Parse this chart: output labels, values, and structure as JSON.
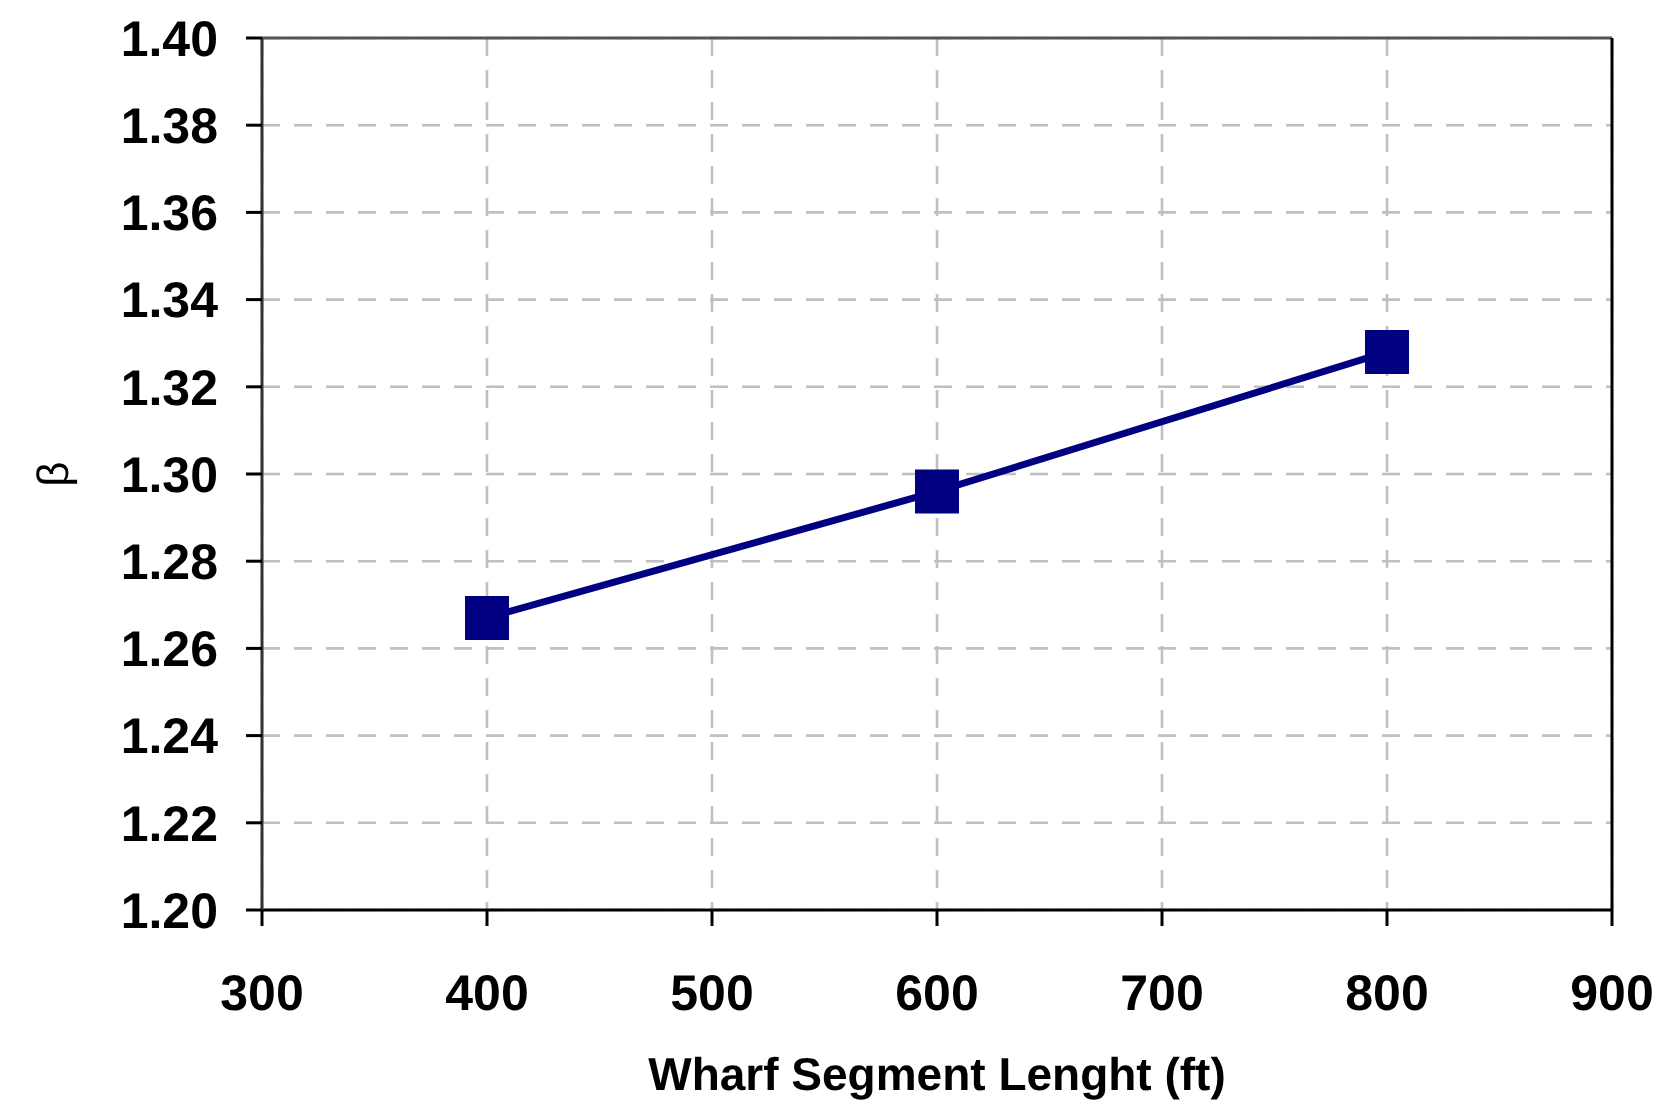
{
  "chart_data": {
    "type": "line",
    "xlabel": "Wharf Segment Lenght (ft)",
    "ylabel": "β",
    "x": [
      400,
      600,
      800
    ],
    "series": [
      {
        "color": "#000080",
        "values": [
          1.267,
          1.296,
          1.328
        ]
      }
    ],
    "xlim": [
      300,
      900
    ],
    "xticks": [
      300,
      400,
      500,
      600,
      700,
      800,
      900
    ],
    "ylim": [
      1.2,
      1.4
    ],
    "yticks": [
      {
        "value": 1.2,
        "label": "1.20"
      },
      {
        "value": 1.22,
        "label": "1.22"
      },
      {
        "value": 1.24,
        "label": "1.24"
      },
      {
        "value": 1.26,
        "label": "1.26"
      },
      {
        "value": 1.28,
        "label": "1.28"
      },
      {
        "value": 1.3,
        "label": "1.30"
      },
      {
        "value": 1.32,
        "label": "1.32"
      },
      {
        "value": 1.34,
        "label": "1.34"
      },
      {
        "value": 1.36,
        "label": "1.36"
      },
      {
        "value": 1.38,
        "label": "1.38"
      },
      {
        "value": 1.4,
        "label": "1.40"
      }
    ],
    "grid": true,
    "marker": "square",
    "line_style": "solid"
  }
}
